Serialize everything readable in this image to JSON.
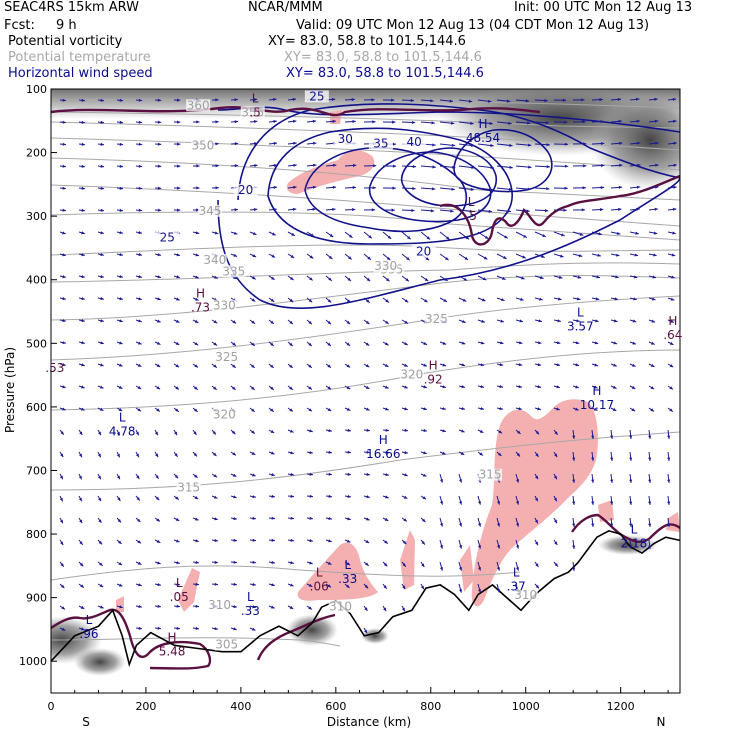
{
  "header": {
    "model": "SEAC4RS 15km ARW",
    "org": "NCAR/MMM",
    "init": "Init: 00 UTC Mon 12 Aug 13",
    "fcst_label": "Fcst:",
    "fcst_value": "9 h",
    "valid": "Valid: 09 UTC Mon 12 Aug 13 (04 CDT Mon 12 Aug 13)",
    "fields": [
      {
        "name": "Potential vorticity",
        "xy": "XY=  83.0, 58.8 to 101.5,144.6",
        "color": "#000000"
      },
      {
        "name": "Potential temperature",
        "xy": "XY=  83.0, 58.8 to 101.5,144.6",
        "color": "#a8a8a8"
      },
      {
        "name": "Horizontal wind speed",
        "xy": "XY=  83.0, 58.8 to 101.5,144.6",
        "color": "#0a0a90"
      }
    ]
  },
  "chart_data": {
    "type": "cross-section",
    "xlabel": "Distance (km)",
    "ylabel": "Pressure (hPa)",
    "xlim": [
      0,
      1325
    ],
    "ylim": [
      1050,
      100
    ],
    "x_ticks": [
      0,
      200,
      400,
      600,
      800,
      1000,
      1200
    ],
    "y_ticks": [
      100,
      200,
      300,
      400,
      500,
      600,
      700,
      800,
      900,
      1000
    ],
    "end_labels": {
      "left": "S",
      "right": "N"
    },
    "colors": {
      "wind_contour": "#12128c",
      "theta_contour": "#a8a8a8",
      "pv_contour": "#5a1040",
      "arrow": "#1a1a96",
      "highlight": "#f4b0b0",
      "terrain": "#000000",
      "shade": "#6a6a6a"
    },
    "terrain": [
      [
        0,
        1000
      ],
      [
        50,
        960
      ],
      [
        100,
        945
      ],
      [
        130,
        920
      ],
      [
        150,
        960
      ],
      [
        165,
        1005
      ],
      [
        180,
        975
      ],
      [
        210,
        955
      ],
      [
        260,
        975
      ],
      [
        310,
        980
      ],
      [
        360,
        985
      ],
      [
        400,
        985
      ],
      [
        440,
        960
      ],
      [
        480,
        945
      ],
      [
        520,
        960
      ],
      [
        550,
        940
      ],
      [
        570,
        915
      ],
      [
        600,
        905
      ],
      [
        630,
        925
      ],
      [
        660,
        960
      ],
      [
        690,
        955
      ],
      [
        720,
        930
      ],
      [
        760,
        920
      ],
      [
        790,
        885
      ],
      [
        820,
        880
      ],
      [
        850,
        895
      ],
      [
        880,
        920
      ],
      [
        900,
        895
      ],
      [
        930,
        880
      ],
      [
        960,
        900
      ],
      [
        990,
        920
      ],
      [
        1020,
        895
      ],
      [
        1060,
        870
      ],
      [
        1090,
        860
      ],
      [
        1110,
        845
      ],
      [
        1130,
        825
      ],
      [
        1150,
        805
      ],
      [
        1175,
        795
      ],
      [
        1200,
        800
      ],
      [
        1220,
        820
      ],
      [
        1245,
        830
      ],
      [
        1270,
        815
      ],
      [
        1295,
        805
      ],
      [
        1325,
        810
      ]
    ],
    "wind_speed_contours": [
      {
        "label": "20",
        "label_at": [
          410,
          265
        ]
      },
      {
        "label": "20",
        "label_at": [
          785,
          362
        ]
      },
      {
        "label": "25",
        "label_at": [
          245,
          340
        ]
      },
      {
        "label": "25",
        "label_at": [
          560,
          118
        ]
      },
      {
        "label": "30",
        "label_at": [
          620,
          185
        ]
      },
      {
        "label": "35",
        "label_at": [
          695,
          192
        ]
      },
      {
        "label": "40",
        "label_at": [
          765,
          190
        ]
      }
    ],
    "theta_contours": [
      {
        "label": "360",
        "label_at": [
          310,
          132
        ]
      },
      {
        "label": "355",
        "label_at": [
          425,
          143
        ]
      },
      {
        "label": "350",
        "label_at": [
          320,
          195
        ]
      },
      {
        "label": "345",
        "label_at": [
          335,
          298
        ]
      },
      {
        "label": "340",
        "label_at": [
          345,
          375
        ]
      },
      {
        "label": "335",
        "label_at": [
          385,
          393
        ]
      },
      {
        "label": "335",
        "label_at": [
          718,
          390
        ]
      },
      {
        "label": "330",
        "label_at": [
          365,
          447
        ]
      },
      {
        "label": "330",
        "label_at": [
          705,
          385
        ]
      },
      {
        "label": "325",
        "label_at": [
          370,
          528
        ]
      },
      {
        "label": "325",
        "label_at": [
          812,
          468
        ]
      },
      {
        "label": "320",
        "label_at": [
          365,
          618
        ]
      },
      {
        "label": "320",
        "label_at": [
          760,
          555
        ]
      },
      {
        "label": "315",
        "label_at": [
          290,
          733
        ]
      },
      {
        "label": "315",
        "label_at": [
          925,
          713
        ]
      },
      {
        "label": "310",
        "label_at": [
          355,
          918
        ]
      },
      {
        "label": "310",
        "label_at": [
          610,
          920
        ]
      },
      {
        "label": "310",
        "label_at": [
          1000,
          902
        ]
      },
      {
        "label": "305",
        "label_at": [
          370,
          980
        ]
      }
    ],
    "extrema": [
      {
        "kind": "H",
        "value": "48.54",
        "at": [
          910,
          180
        ],
        "color": "#0a0a90"
      },
      {
        "kind": "H",
        "value": "16.66",
        "at": [
          700,
          677
        ],
        "color": "#0a0a90"
      },
      {
        "kind": "H",
        "value": "10.17",
        "at": [
          1150,
          600
        ],
        "color": "#0a0a90"
      },
      {
        "kind": "H",
        "value": ".73",
        "at": [
          315,
          447
        ],
        "color": "#5a1040"
      },
      {
        "kind": "H",
        "value": ".92",
        "at": [
          805,
          560
        ],
        "color": "#5a1040"
      },
      {
        "kind": "H",
        "value": ".64",
        "at": [
          1310,
          490
        ],
        "color": "#5a1040"
      },
      {
        "kind": "H",
        "value": "5.48",
        "at": [
          255,
          988
        ],
        "color": "#5a1040"
      },
      {
        "kind": "L",
        "value": "3.57",
        "at": [
          1115,
          477
        ],
        "color": "#0a0a90"
      },
      {
        "kind": "L",
        "value": "4.78",
        "at": [
          150,
          642
        ],
        "color": "#0a0a90"
      },
      {
        "kind": "L",
        "value": ".05",
        "at": [
          270,
          902
        ],
        "color": "#5a1040"
      },
      {
        "kind": "L",
        "value": ".06",
        "at": [
          565,
          886
        ],
        "color": "#5a1040"
      },
      {
        "kind": "L",
        "value": ".33",
        "at": [
          625,
          874
        ],
        "color": "#0a0a90"
      },
      {
        "kind": "L",
        "value": ".33",
        "at": [
          420,
          924
        ],
        "color": "#0a0a90"
      },
      {
        "kind": "L",
        "value": ".37",
        "at": [
          980,
          886
        ],
        "color": "#0a0a90"
      },
      {
        "kind": "L",
        "value": ".96",
        "at": [
          80,
          960
        ],
        "color": "#0a0a90"
      },
      {
        "kind": "L",
        "value": "2.18",
        "at": [
          1228,
          818
        ],
        "color": "#0a0a90"
      },
      {
        "kind": "L",
        "value": ".5",
        "at": [
          430,
          140
        ],
        "color": "#5a1040"
      },
      {
        "kind": "L",
        "value": ".5",
        "at": [
          885,
          303
        ],
        "color": "#5a1040"
      }
    ],
    "edge_labels": [
      {
        "text": ".53",
        "at": [
          8,
          545
        ],
        "color": "#5a1040"
      }
    ]
  }
}
